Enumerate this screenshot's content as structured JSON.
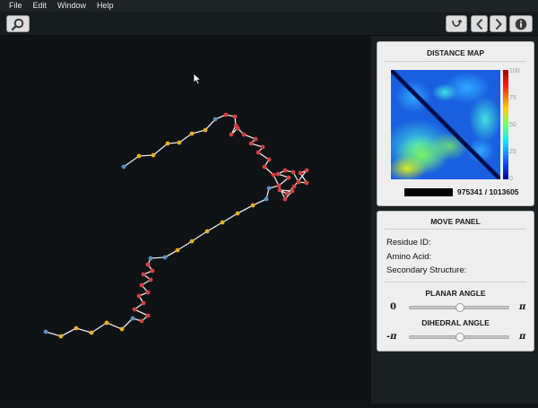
{
  "menubar": {
    "items": [
      "File",
      "Edit",
      "Window",
      "Help"
    ]
  },
  "toolbar": {
    "left_button_icon": "magnifier-icon",
    "right_buttons": [
      "undo-curve-icon",
      "chevron-left-icon",
      "chevron-right-icon",
      "info-icon"
    ]
  },
  "distance_map": {
    "title": "DISTANCE MAP",
    "scale_ticks": [
      "100",
      "75",
      "50",
      "25",
      "0"
    ],
    "counter": "975341 / 1013605"
  },
  "move_panel": {
    "title": "MOVE PANEL",
    "residue_id_label": "Residue ID:",
    "amino_acid_label": "Amino Acid:",
    "secondary_structure_label": "Secondary Structure:",
    "planar_angle": {
      "title": "PLANAR ANGLE",
      "min_label": "0",
      "max_label": "π",
      "value_fraction": 0.5
    },
    "dihedral_angle": {
      "title": "DIHEDRAL ANGLE",
      "min_label": "-π",
      "max_label": "π",
      "value_fraction": 0.5
    }
  },
  "colors": {
    "helix": "#d94040",
    "strand": "#e6b020",
    "coil": "#5b8fc4",
    "bond": "#e8e8e8"
  }
}
